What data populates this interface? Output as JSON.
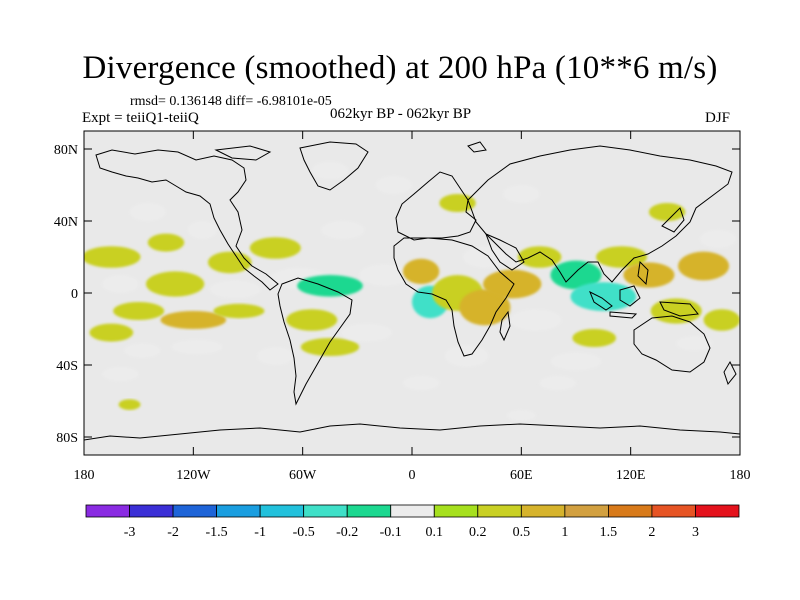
{
  "title": "Divergence (smoothed) at 200 hPa (10**6 m/s)",
  "stats_line": "rmsd= 0.136148 diff= -6.98101e-05",
  "experiment_line": "Expt = teiiQ1-teiiQ",
  "period_line": "062kyr BP - 062kyr BP",
  "season": "DJF",
  "map": {
    "projection": "cylindrical equidistant",
    "background_color": "#e9e9e9",
    "lon_range": [
      -180,
      180
    ],
    "lat_range": [
      -90,
      90
    ],
    "lat_ticks": [
      {
        "value": 80,
        "label": "80N"
      },
      {
        "value": 40,
        "label": "40N"
      },
      {
        "value": 0,
        "label": "0"
      },
      {
        "value": -40,
        "label": "40S"
      },
      {
        "value": -80,
        "label": "80S"
      }
    ],
    "lon_ticks": [
      {
        "value": -180,
        "label": "180"
      },
      {
        "value": -120,
        "label": "120W"
      },
      {
        "value": -60,
        "label": "60W"
      },
      {
        "value": 0,
        "label": "0"
      },
      {
        "value": 60,
        "label": "60E"
      },
      {
        "value": 120,
        "label": "120E"
      },
      {
        "value": 180,
        "label": "180"
      }
    ]
  },
  "colorbar": {
    "colors": [
      "#8a2be2",
      "#3b2fd6",
      "#1e64d8",
      "#1a9ee0",
      "#22c1dc",
      "#3fe0c8",
      "#1cd890",
      "#ececec",
      "#a6e01e",
      "#c9d024",
      "#d6b32c",
      "#d2a040",
      "#d87a1a",
      "#e65424",
      "#e4121c"
    ],
    "labels": [
      "-3",
      "-2",
      "-1.5",
      "-1",
      "-0.5",
      "-0.2",
      "-0.1",
      "0.1",
      "0.2",
      "0.5",
      "1",
      "1.5",
      "2",
      "3"
    ]
  },
  "blobs": [
    {
      "lon": -165,
      "lat": 20,
      "rx": 16,
      "ry": 6,
      "value": 0.2
    },
    {
      "lon": -160,
      "lat": 5,
      "rx": 10,
      "ry": 5,
      "value": -0.1
    },
    {
      "lon": -150,
      "lat": -10,
      "rx": 14,
      "ry": 5,
      "value": 0.2
    },
    {
      "lon": -165,
      "lat": -22,
      "rx": 12,
      "ry": 5,
      "value": 0.2
    },
    {
      "lon": -148,
      "lat": -32,
      "rx": 10,
      "ry": 4,
      "value": -0.1
    },
    {
      "lon": -130,
      "lat": 5,
      "rx": 16,
      "ry": 7,
      "value": 0.2
    },
    {
      "lon": -120,
      "lat": -15,
      "rx": 18,
      "ry": 5,
      "value": 0.5
    },
    {
      "lon": -118,
      "lat": -30,
      "rx": 14,
      "ry": 4,
      "value": -0.1
    },
    {
      "lon": -135,
      "lat": 28,
      "rx": 10,
      "ry": 5,
      "value": 0.2
    },
    {
      "lon": -115,
      "lat": 35,
      "rx": 8,
      "ry": 5,
      "value": -0.1
    },
    {
      "lon": -100,
      "lat": 17,
      "rx": 12,
      "ry": 6,
      "value": 0.2
    },
    {
      "lon": -97,
      "lat": 2,
      "rx": 14,
      "ry": 5,
      "value": -0.1
    },
    {
      "lon": -95,
      "lat": -10,
      "rx": 14,
      "ry": 4,
      "value": 0.2
    },
    {
      "lon": -75,
      "lat": 25,
      "rx": 14,
      "ry": 6,
      "value": 0.2
    },
    {
      "lon": -62,
      "lat": 8,
      "rx": 16,
      "ry": 6,
      "value": -0.1
    },
    {
      "lon": -55,
      "lat": -15,
      "rx": 14,
      "ry": 6,
      "value": 0.2
    },
    {
      "lon": -45,
      "lat": -30,
      "rx": 16,
      "ry": 5,
      "value": 0.2
    },
    {
      "lon": -75,
      "lat": -35,
      "rx": 10,
      "ry": 5,
      "value": -0.1
    },
    {
      "lon": -45,
      "lat": 4,
      "rx": 18,
      "ry": 6,
      "value": -0.2
    },
    {
      "lon": -38,
      "lat": 35,
      "rx": 12,
      "ry": 5,
      "value": -0.1
    },
    {
      "lon": -45,
      "lat": 68,
      "rx": 10,
      "ry": 5,
      "value": -0.1
    },
    {
      "lon": -25,
      "lat": -22,
      "rx": 14,
      "ry": 5,
      "value": -0.1
    },
    {
      "lon": -15,
      "lat": 10,
      "rx": 14,
      "ry": 6,
      "value": -0.1
    },
    {
      "lon": -10,
      "lat": 60,
      "rx": 10,
      "ry": 5,
      "value": -0.1
    },
    {
      "lon": 5,
      "lat": 12,
      "rx": 10,
      "ry": 7,
      "value": 0.5
    },
    {
      "lon": 10,
      "lat": -5,
      "rx": 10,
      "ry": 9,
      "value": -0.5
    },
    {
      "lon": 25,
      "lat": 0,
      "rx": 14,
      "ry": 10,
      "value": 0.2
    },
    {
      "lon": 40,
      "lat": -8,
      "rx": 14,
      "ry": 10,
      "value": 0.5
    },
    {
      "lon": 30,
      "lat": -35,
      "rx": 12,
      "ry": 6,
      "value": -0.1
    },
    {
      "lon": 40,
      "lat": 20,
      "rx": 12,
      "ry": 6,
      "value": -0.1
    },
    {
      "lon": 55,
      "lat": 5,
      "rx": 16,
      "ry": 8,
      "value": 0.5
    },
    {
      "lon": 68,
      "lat": -15,
      "rx": 14,
      "ry": 6,
      "value": -0.1
    },
    {
      "lon": 70,
      "lat": 20,
      "rx": 12,
      "ry": 6,
      "value": 0.2
    },
    {
      "lon": 90,
      "lat": 10,
      "rx": 14,
      "ry": 8,
      "value": -0.2
    },
    {
      "lon": 105,
      "lat": -2,
      "rx": 18,
      "ry": 8,
      "value": -0.5
    },
    {
      "lon": 100,
      "lat": -25,
      "rx": 12,
      "ry": 5,
      "value": 0.2
    },
    {
      "lon": 90,
      "lat": -38,
      "rx": 14,
      "ry": 5,
      "value": -0.1
    },
    {
      "lon": 115,
      "lat": 20,
      "rx": 14,
      "ry": 6,
      "value": 0.2
    },
    {
      "lon": 130,
      "lat": 10,
      "rx": 14,
      "ry": 7,
      "value": 0.5
    },
    {
      "lon": 145,
      "lat": -10,
      "rx": 14,
      "ry": 7,
      "value": 0.2
    },
    {
      "lon": 160,
      "lat": 15,
      "rx": 14,
      "ry": 8,
      "value": 0.5
    },
    {
      "lon": 170,
      "lat": -15,
      "rx": 10,
      "ry": 6,
      "value": 0.2
    },
    {
      "lon": 155,
      "lat": -28,
      "rx": 10,
      "ry": 4,
      "value": -0.1
    },
    {
      "lon": 168,
      "lat": 30,
      "rx": 10,
      "ry": 5,
      "value": -0.1
    },
    {
      "lon": 140,
      "lat": 45,
      "rx": 10,
      "ry": 5,
      "value": 0.2
    },
    {
      "lon": 60,
      "lat": 55,
      "rx": 10,
      "ry": 5,
      "value": -0.1
    },
    {
      "lon": 25,
      "lat": 50,
      "rx": 10,
      "ry": 5,
      "value": 0.2
    },
    {
      "lon": -145,
      "lat": 45,
      "rx": 10,
      "ry": 5,
      "value": -0.1
    },
    {
      "lon": 5,
      "lat": -50,
      "rx": 10,
      "ry": 4,
      "value": -0.1
    },
    {
      "lon": 80,
      "lat": -50,
      "rx": 10,
      "ry": 4,
      "value": -0.1
    },
    {
      "lon": -160,
      "lat": -45,
      "rx": 10,
      "ry": 4,
      "value": -0.1
    },
    {
      "lon": 60,
      "lat": -68,
      "rx": 8,
      "ry": 3,
      "value": -0.1
    },
    {
      "lon": -155,
      "lat": -62,
      "rx": 6,
      "ry": 3,
      "value": 0.2
    }
  ]
}
